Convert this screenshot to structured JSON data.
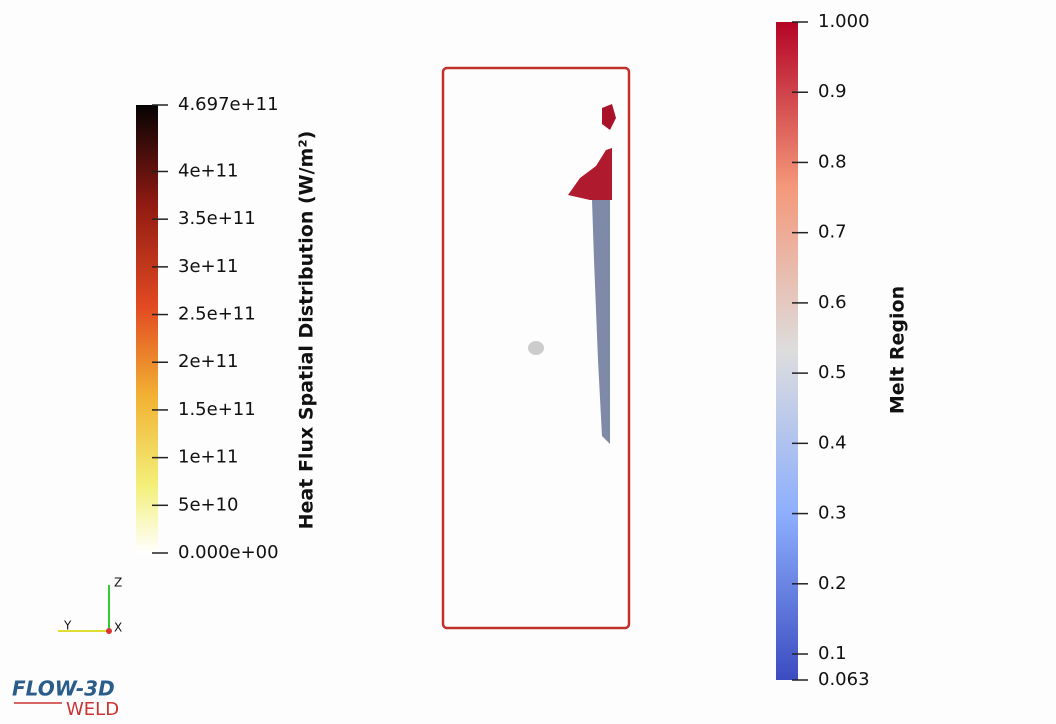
{
  "colorbars": [
    {
      "title": "Heat Flux Spatial Distribution (W/m²)",
      "range": [
        0,
        469700000000
      ],
      "ticks": [
        {
          "value": 0,
          "label": "0.000e+00"
        },
        {
          "value": 50000000000,
          "label": "5e+10"
        },
        {
          "value": 100000000000,
          "label": "1e+11"
        },
        {
          "value": 150000000000,
          "label": "1.5e+11"
        },
        {
          "value": 200000000000,
          "label": "2e+11"
        },
        {
          "value": 250000000000,
          "label": "2.5e+11"
        },
        {
          "value": 300000000000,
          "label": "3e+11"
        },
        {
          "value": 350000000000,
          "label": "3.5e+11"
        },
        {
          "value": 400000000000,
          "label": "4e+11"
        },
        {
          "value": 469700000000,
          "label": "4.697e+11"
        }
      ]
    },
    {
      "title": "Melt Region",
      "range": [
        0.063,
        1
      ],
      "ticks": [
        0.063,
        0.1,
        0.2,
        0.3,
        0.4,
        0.5,
        0.6,
        0.7,
        0.8,
        0.9,
        {
          "value": 1,
          "label": "1.000"
        }
      ]
    }
  ],
  "axes_triad": {
    "z": "Z",
    "y": "Y",
    "x": "X"
  },
  "logo": {
    "brand": "FLOW-3D",
    "product": "WELD"
  }
}
